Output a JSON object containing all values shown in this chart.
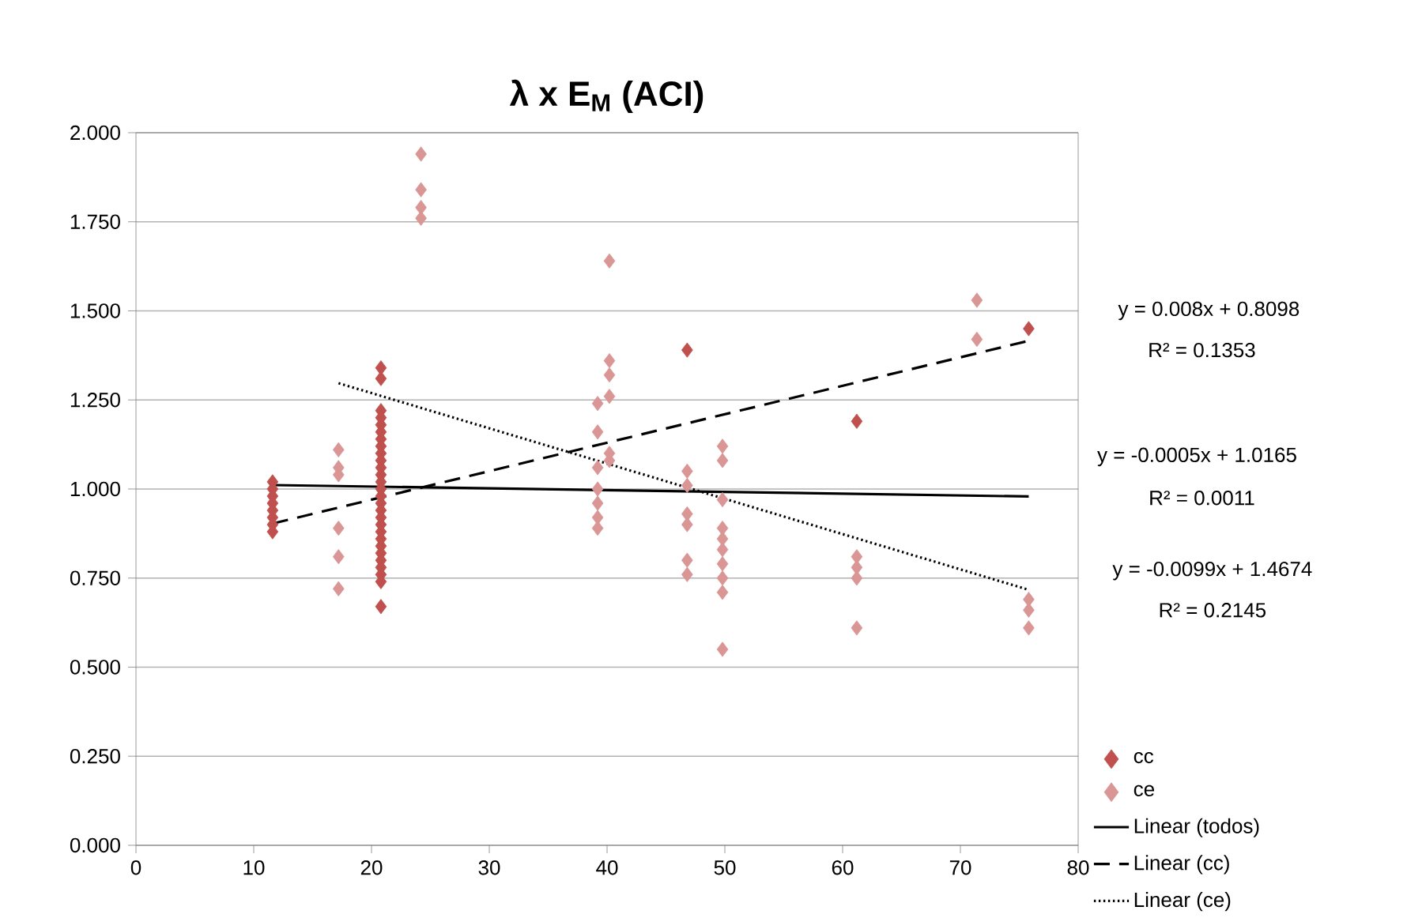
{
  "chart_data": {
    "type": "scatter",
    "title": "λ x E$_{M}$ (ACI)",
    "xlim": [
      0,
      80
    ],
    "xticks": [
      0,
      10,
      20,
      30,
      40,
      50,
      60,
      70,
      80
    ],
    "ylim": [
      0,
      2
    ],
    "yticks": [
      {
        "value": 0,
        "label": "0.000"
      },
      {
        "value": 0.25,
        "label": "0.250"
      },
      {
        "value": 0.5,
        "label": "0.500"
      },
      {
        "value": 0.75,
        "label": "0.750"
      },
      {
        "value": 1,
        "label": "1.000"
      },
      {
        "value": 1.25,
        "label": "1.250"
      },
      {
        "value": 1.5,
        "label": "1.500"
      },
      {
        "value": 1.75,
        "label": "1.750"
      },
      {
        "value": 2,
        "label": "2.000"
      }
    ],
    "grid": "y",
    "legend": "right",
    "annotations": [
      "y = 0.008x + 0.8098",
      "R² = 0.1353",
      "y = -0.0005x + 1.0165",
      "R² = 0.0011",
      "y = -0.0099x + 1.4674",
      "R² = 0.2145"
    ],
    "series": [
      {
        "name": "cc",
        "color": "#c0504d",
        "marker": "diamond",
        "x": [
          11.6,
          11.6,
          11.6,
          11.6,
          11.6,
          11.6,
          11.6,
          11.6,
          20.8,
          20.8,
          20.8,
          20.8,
          20.8,
          20.8,
          20.8,
          20.8,
          20.8,
          20.8,
          20.8,
          20.8,
          20.8,
          20.8,
          20.8,
          20.8,
          20.8,
          20.8,
          20.8,
          20.8,
          20.8,
          20.8,
          20.8,
          20.8,
          20.8,
          20.8,
          20.8,
          20.8,
          46.8,
          61.2,
          75.8
        ],
        "values": [
          1.02,
          1.0,
          0.98,
          0.96,
          0.94,
          0.92,
          0.9,
          0.88,
          1.34,
          1.31,
          1.22,
          1.2,
          1.18,
          1.16,
          1.14,
          1.12,
          1.1,
          1.08,
          1.06,
          1.04,
          1.02,
          1.0,
          0.98,
          0.96,
          0.94,
          0.92,
          0.9,
          0.88,
          0.86,
          0.84,
          0.82,
          0.8,
          0.78,
          0.76,
          0.74,
          0.67,
          1.39,
          1.19,
          1.45
        ]
      },
      {
        "name": "ce",
        "color": "#d99694",
        "marker": "diamond",
        "x": [
          17.2,
          17.2,
          17.2,
          17.2,
          17.2,
          17.2,
          24.2,
          24.2,
          24.2,
          24.2,
          39.2,
          39.2,
          39.2,
          39.2,
          39.2,
          39.2,
          39.2,
          40.2,
          40.2,
          40.2,
          40.2,
          40.2,
          40.2,
          46.8,
          46.8,
          46.8,
          46.8,
          46.8,
          46.8,
          49.8,
          49.8,
          49.8,
          49.8,
          49.8,
          49.8,
          49.8,
          49.8,
          49.8,
          49.8,
          61.2,
          61.2,
          61.2,
          61.2,
          71.4,
          71.4,
          75.8,
          75.8,
          75.8
        ],
        "values": [
          1.11,
          1.06,
          1.04,
          0.89,
          0.81,
          0.72,
          1.94,
          1.84,
          1.79,
          1.76,
          1.24,
          1.16,
          1.06,
          1.0,
          0.96,
          0.92,
          0.89,
          1.64,
          1.36,
          1.32,
          1.26,
          1.1,
          1.08,
          1.05,
          1.01,
          0.93,
          0.9,
          0.8,
          0.76,
          1.12,
          1.08,
          0.97,
          0.89,
          0.86,
          0.83,
          0.79,
          0.75,
          0.71,
          0.55,
          0.81,
          0.78,
          0.75,
          0.61,
          1.53,
          1.42,
          0.69,
          0.66,
          0.61
        ]
      },
      {
        "name": "Linear (todos)",
        "type": "line",
        "marker": "none",
        "line_style": "solid",
        "color": "#000000",
        "x": [
          11.6,
          75.8
        ],
        "values": [
          1.011,
          0.979
        ]
      },
      {
        "name": "Linear (cc)",
        "type": "line",
        "marker": "none",
        "line_style": "dashed",
        "color": "#000000",
        "x": [
          11.6,
          75.8
        ],
        "values": [
          0.903,
          1.416
        ]
      },
      {
        "name": "Linear (ce)",
        "type": "line",
        "marker": "none",
        "line_style": "dotted",
        "color": "#000000",
        "x": [
          17.2,
          75.8
        ],
        "values": [
          1.297,
          0.717
        ]
      }
    ]
  }
}
